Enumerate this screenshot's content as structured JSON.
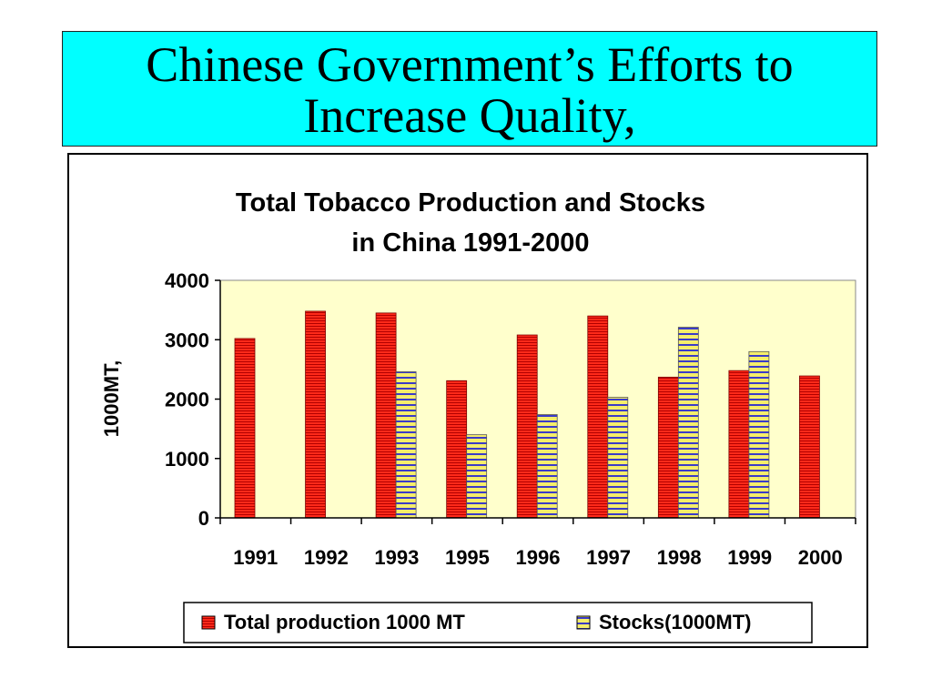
{
  "slide": {
    "title_line1": "Chinese Government’s Efforts to",
    "title_line2": "Increase Quality,"
  },
  "colors": {
    "title_background": "#00ffff",
    "plot_background": "#ffffcc",
    "production_bar": "#ff2a1a",
    "stocks_bar": "#f5ee6a"
  },
  "chart_data": {
    "type": "bar",
    "title_line1": "Total Tobacco Production and Stocks",
    "title_line2": "in China 1991-2000",
    "xlabel": "",
    "ylabel": "1000MT,",
    "ylim": [
      0,
      4000
    ],
    "yticks": [
      "0",
      "1000",
      "2000",
      "3000",
      "4000"
    ],
    "categories": [
      "1991",
      "1992",
      "1993",
      "1995",
      "1996",
      "1997",
      "1998",
      "1999",
      "2000"
    ],
    "series": [
      {
        "name": "Total production 1000 MT",
        "values": [
          3020,
          3480,
          3450,
          2310,
          3080,
          3400,
          2370,
          2480,
          2390
        ]
      },
      {
        "name": "Stocks(1000MT)",
        "values": [
          null,
          null,
          2460,
          1400,
          1740,
          2030,
          3210,
          2800,
          null
        ]
      }
    ],
    "grid": false,
    "legend_position": "bottom"
  }
}
